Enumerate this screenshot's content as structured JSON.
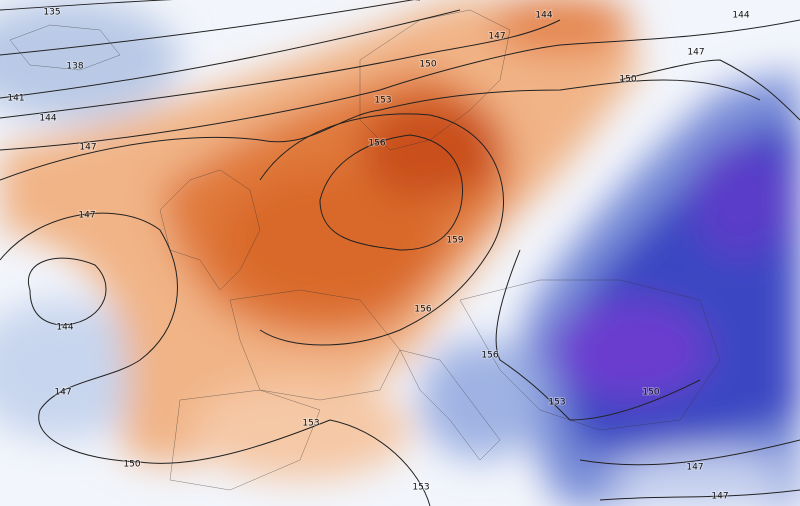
{
  "map": {
    "contour_labels": [
      135,
      138,
      141,
      144,
      147,
      147,
      144,
      147,
      150,
      153,
      153,
      150,
      153,
      156,
      159,
      156,
      156,
      153,
      150,
      147,
      147,
      144,
      147,
      147,
      150,
      144
    ]
  }
}
